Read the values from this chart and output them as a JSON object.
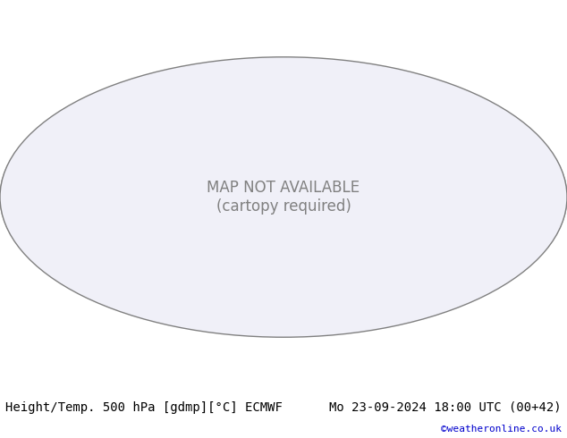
{
  "title_left": "Height/Temp. 500 hPa [gdmp][°C] ECMWF",
  "title_right": "Mo 23-09-2024 18:00 UTC (00+42)",
  "copyright": "©weatheronline.co.uk",
  "bg_color": "#ffffff",
  "map_bg_color": "#e8e8e8",
  "ocean_color": "#f0f0f8",
  "land_color": "#d0d0d0",
  "label_color_left": "#000000",
  "label_color_right": "#000000",
  "copyright_color": "#0000cc",
  "font_size_title": 10,
  "font_size_copyright": 8,
  "fig_width": 6.34,
  "fig_height": 4.9,
  "dpi": 100,
  "map_extent": [
    -180,
    180,
    -90,
    90
  ],
  "contour_color_black": "#000000",
  "contour_color_red": "#ff0000",
  "contour_color_orange": "#ff8800",
  "contour_color_cyan": "#00cccc",
  "contour_color_blue": "#0000ff",
  "contour_color_purple": "#8800cc",
  "contour_color_green": "#00aa00",
  "fill_color_lightgreen": "#ccffcc",
  "fill_color_green": "#aaffaa"
}
